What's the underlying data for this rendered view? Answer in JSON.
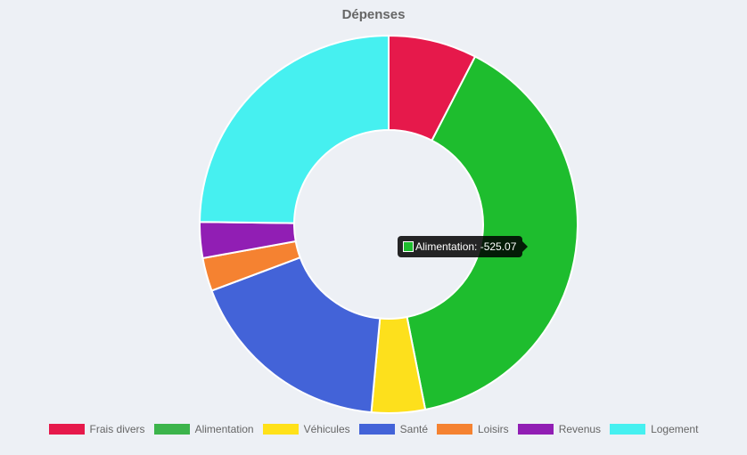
{
  "chart_data": {
    "type": "pie",
    "variant": "doughnut",
    "title": "Dépenses",
    "legend_position": "bottom",
    "slices": [
      {
        "label": "Frais divers",
        "value": -101,
        "color": "#e6194b"
      },
      {
        "label": "Alimentation",
        "value": -525.07,
        "color": "#1ebd2e"
      },
      {
        "label": "Véhicules",
        "value": -61,
        "color": "#fde01c"
      },
      {
        "label": "Santé",
        "value": -238,
        "color": "#4363d8"
      },
      {
        "label": "Loisirs",
        "value": -38,
        "color": "#f58231"
      },
      {
        "label": "Revenus",
        "value": -41,
        "color": "#911eb4"
      },
      {
        "label": "Logement",
        "value": -331,
        "color": "#46f0f0"
      }
    ],
    "legend_colors": [
      "#e6194b",
      "#3cb44b",
      "#ffe119",
      "#4363d8",
      "#f58231",
      "#911eb4",
      "#46f0f0"
    ],
    "tooltip": {
      "label": "Alimentation",
      "value": "-525.07",
      "text": "Alimentation: -525.07",
      "color": "#1ebd2e"
    }
  }
}
